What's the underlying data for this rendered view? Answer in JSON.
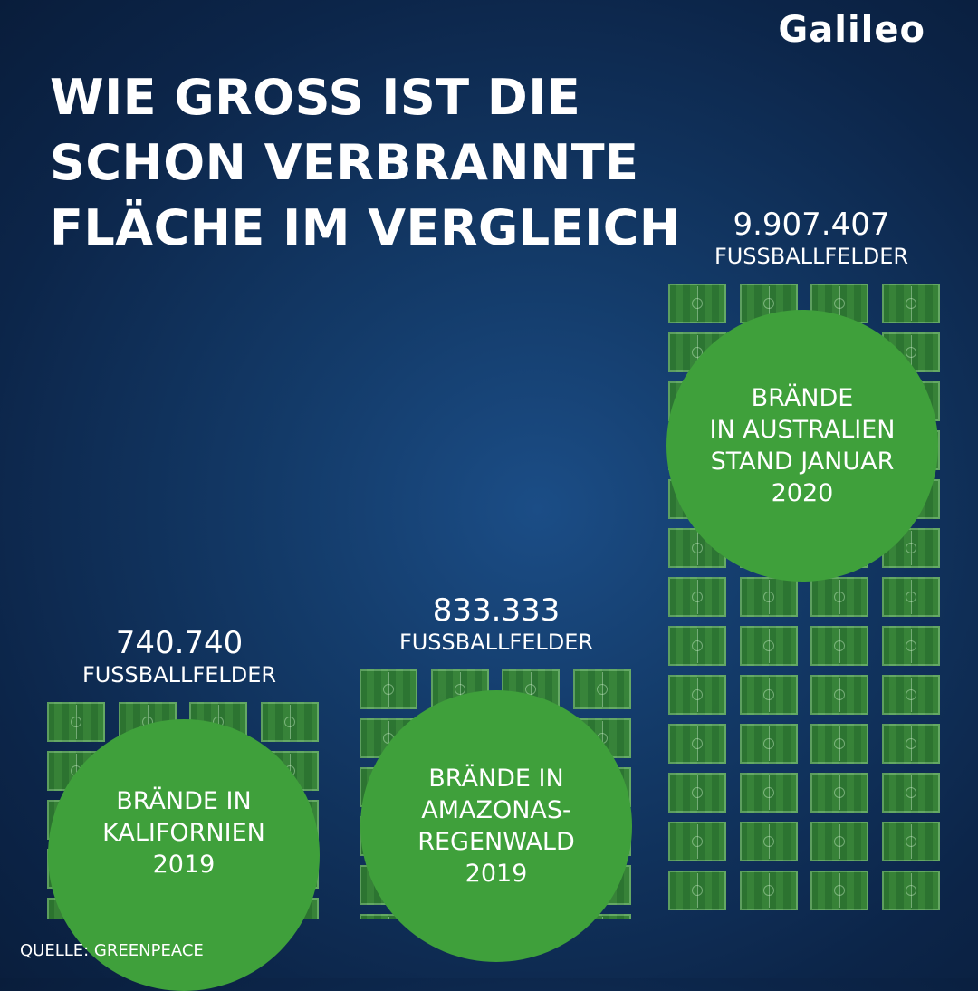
{
  "brand": {
    "logo": "Galileo"
  },
  "title": "WIE GROSS IST DIE SCHON VERBRANNTE FLÄCHE IM VERGLEICH",
  "source": "QUELLE:  GREENPEACE",
  "chart_data": {
    "type": "bar",
    "title": "WIE GROSS IST DIE SCHON VERBRANNTE FLÄCHE IM VERGLEICH",
    "categories": [
      "BRÄNDE IN\nKALIFORNIEN\n2019",
      "BRÄNDE IN\nAMAZONAS-\nREGENWALD\n2019",
      "BRÄNDE\nIN AUSTRALIEN\nSTAND JANUAR\n2020"
    ],
    "values": [
      740740,
      833333,
      9907407
    ],
    "value_labels": [
      "740.740",
      "833.333",
      "9.907.407"
    ],
    "unit_label": "FUSSBALLFELDER",
    "colors": {
      "circle": "#3fa03b",
      "field": "#2f7a2e",
      "background": "#133a68"
    }
  }
}
